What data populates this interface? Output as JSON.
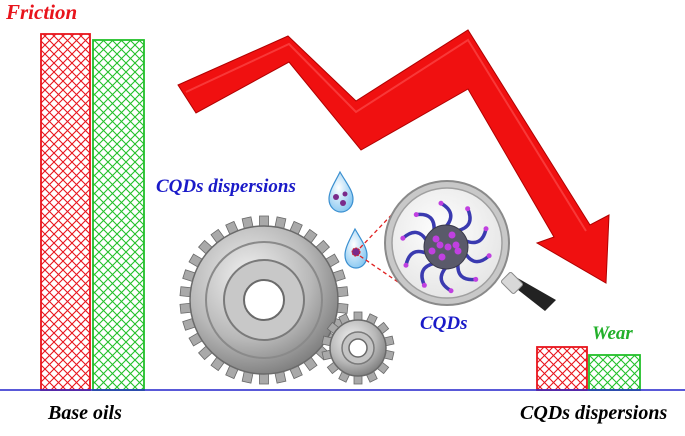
{
  "labels": {
    "friction": "Friction",
    "wear": "Wear",
    "cqds_dispersions_mid": "CQDs dispersions",
    "cqds": "CQDs",
    "base_oils": "Base oils",
    "cqds_dispersions_bottom": "CQDs dispersions"
  },
  "colors": {
    "friction": "#e8141c",
    "wear": "#22b02a",
    "baseline": "#2222cc",
    "arrow": "#f01010",
    "cqd_text": "#1a1ac8",
    "gear": "#a8a8a8",
    "particle_core": "#5a5a6a",
    "particle_dot": "#c040e0",
    "particle_tentacle": "#3a3ab0"
  },
  "groups": [
    {
      "name": "Base oils",
      "friction": "high",
      "wear": "high"
    },
    {
      "name": "CQDs dispersions",
      "friction": "low",
      "wear": "low"
    }
  ],
  "icons": [
    "water-droplet-icon",
    "magnifier-icon",
    "gear-icon",
    "cqd-particle-icon",
    "down-trend-arrow-icon"
  ]
}
